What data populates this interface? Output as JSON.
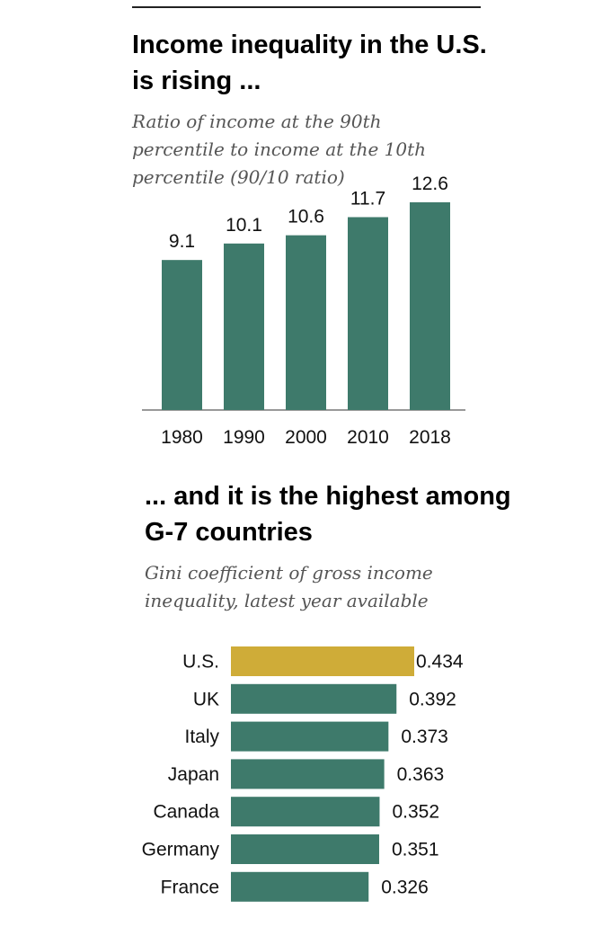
{
  "chart_data": [
    {
      "type": "bar",
      "title": "Income inequality in the U.S. is rising ...",
      "subtitle": "Ratio of income at the 90th percentile to income at the 10th percentile (90/10 ratio)",
      "categories": [
        "1980",
        "1990",
        "2000",
        "2010",
        "2018"
      ],
      "values": [
        9.1,
        10.1,
        10.6,
        11.7,
        12.6
      ],
      "value_labels": [
        "9.1",
        "10.1",
        "10.6",
        "11.7",
        "12.6"
      ],
      "ylim": [
        0,
        14
      ],
      "grid": false,
      "colors": {
        "bar": "#3e7a6b",
        "axis": "#999999"
      }
    },
    {
      "type": "bar",
      "orientation": "horizontal",
      "title": "... and it is the highest among G-7 countries",
      "subtitle": "Gini coefficient of gross income inequality, latest year available",
      "categories": [
        "U.S.",
        "UK",
        "Italy",
        "Japan",
        "Canada",
        "Germany",
        "France"
      ],
      "values": [
        0.434,
        0.392,
        0.373,
        0.363,
        0.352,
        0.351,
        0.326
      ],
      "value_labels": [
        "0.434",
        "0.392",
        "0.373",
        "0.363",
        "0.352",
        "0.351",
        "0.326"
      ],
      "xlim": [
        0,
        0.434
      ],
      "grid": false,
      "colors": {
        "bar": "#3e7a6b",
        "highlight": "#cfac38"
      },
      "highlight_category": "U.S."
    }
  ]
}
